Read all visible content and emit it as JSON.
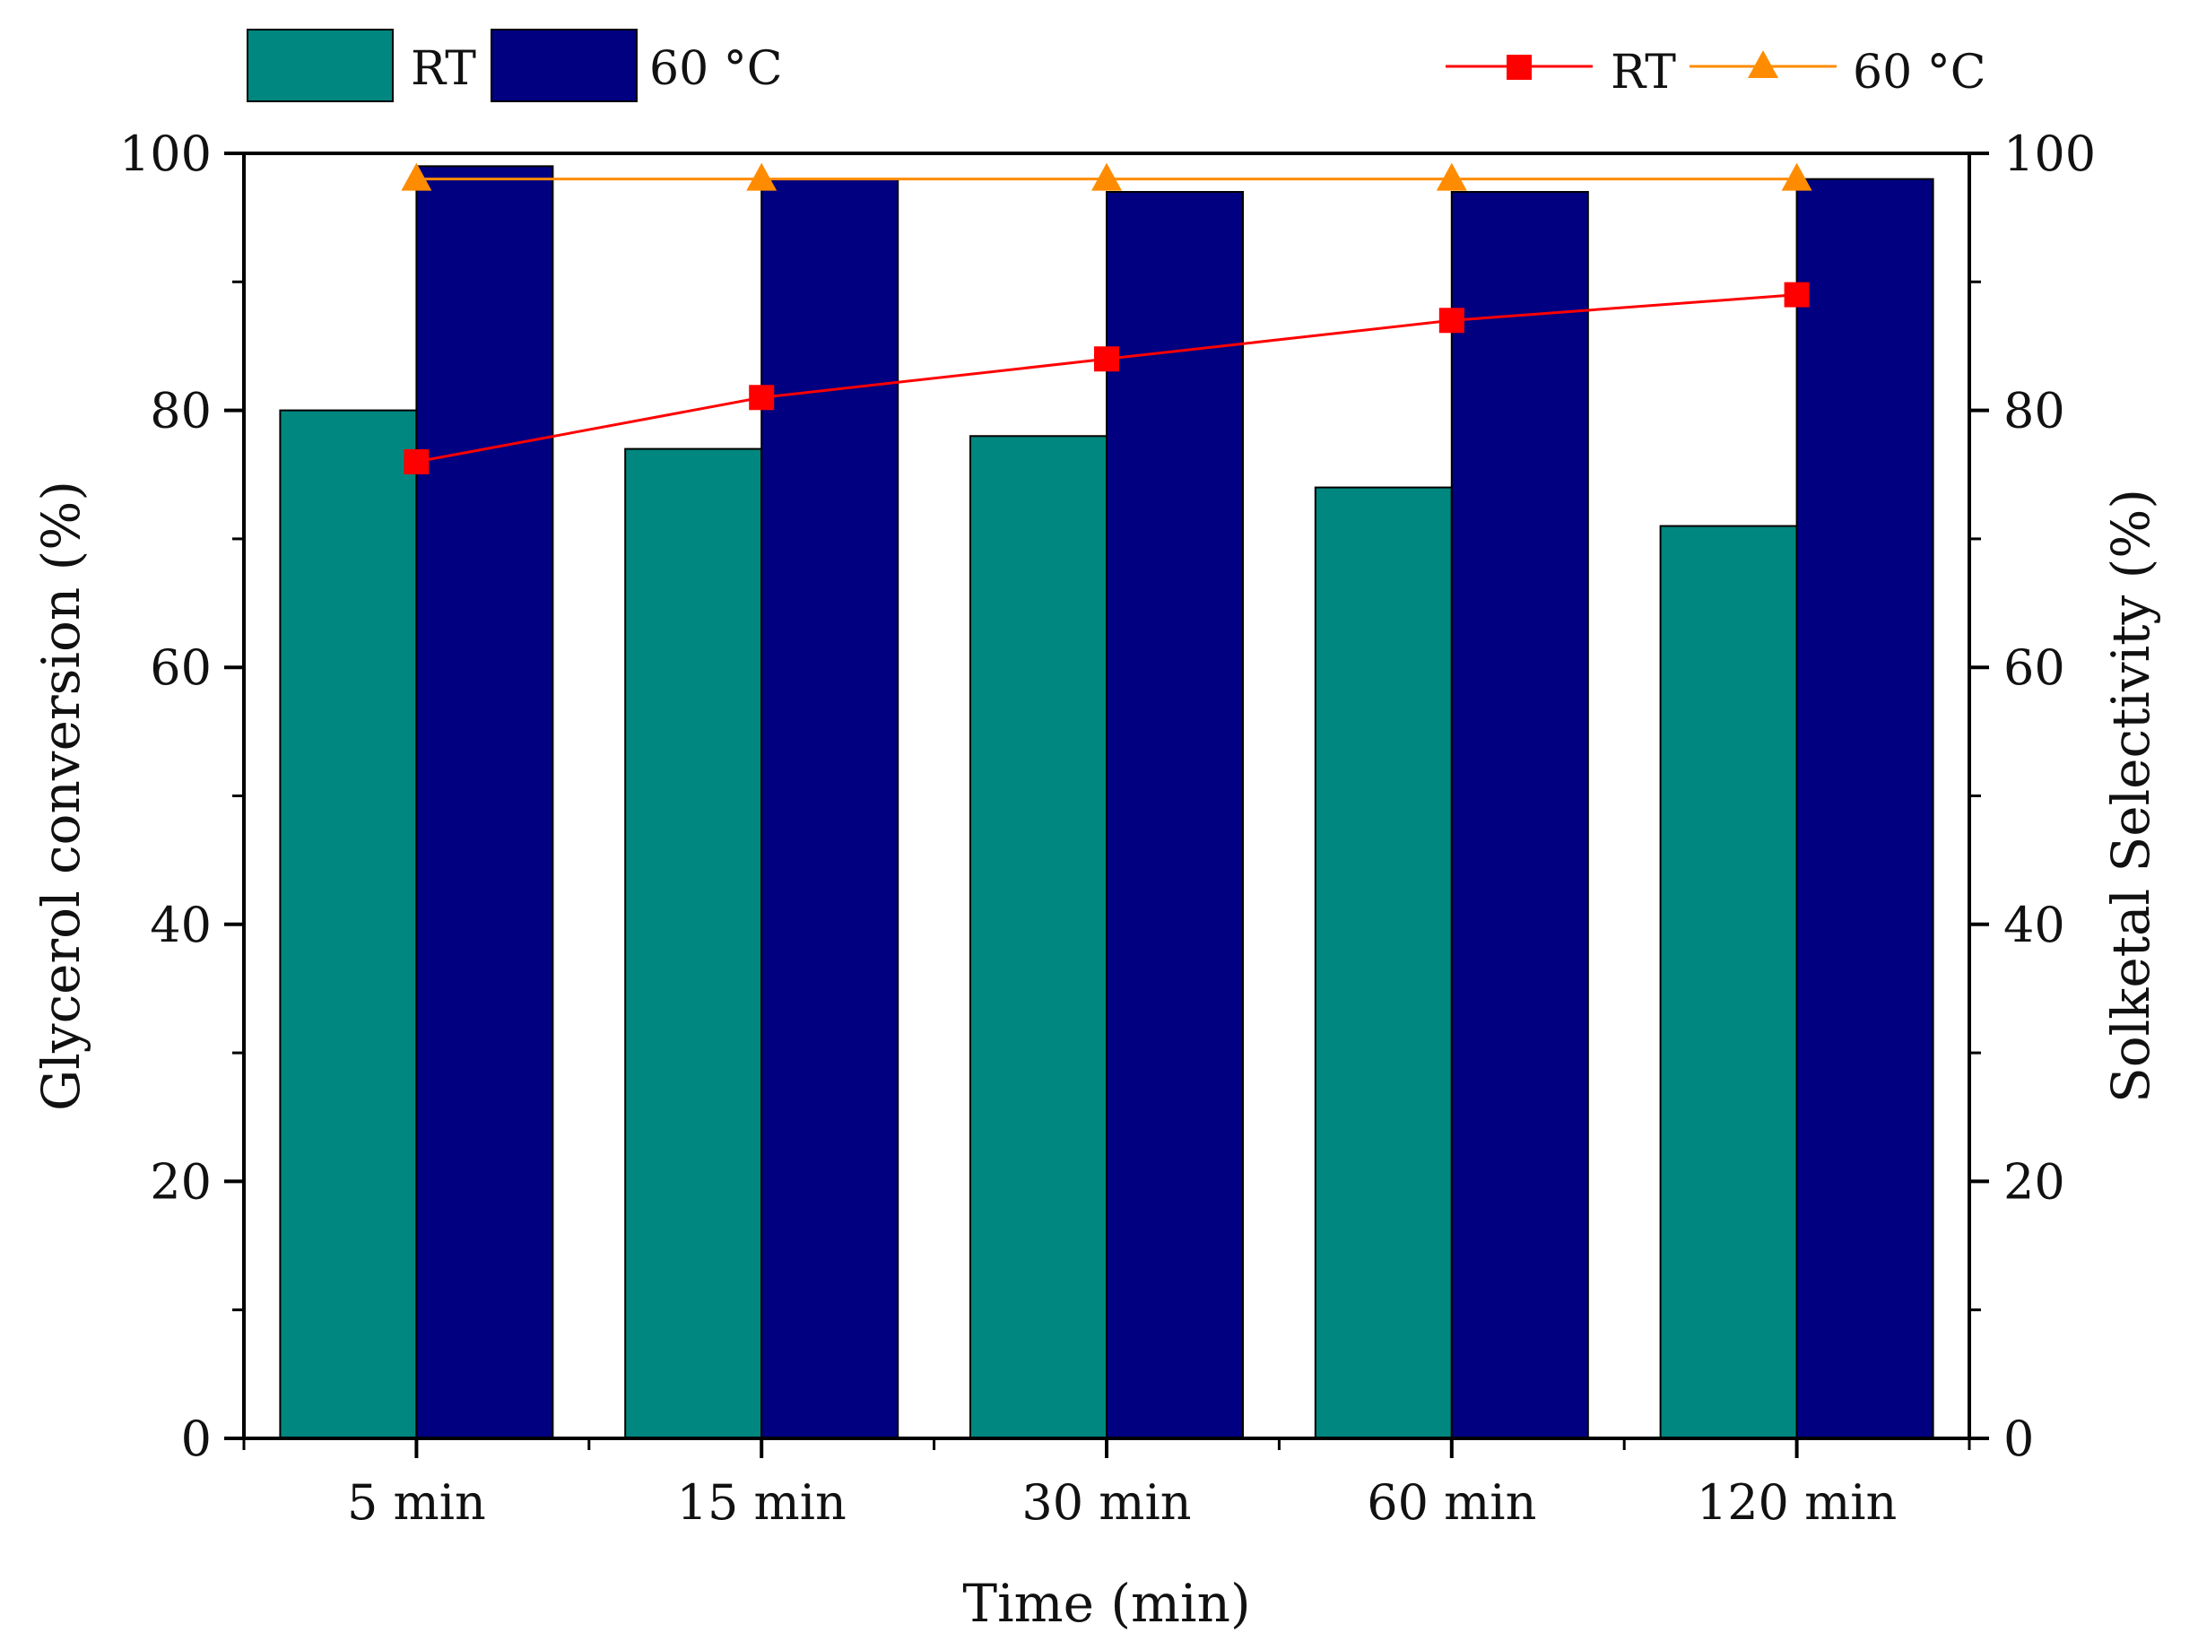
{
  "chart_data": {
    "type": "bar",
    "title": "",
    "categories": [
      "5 min",
      "15 min",
      "30 min",
      "60 min",
      "120 min"
    ],
    "xlabel": "Time (min)",
    "ylabel": "Glycerol conversion (%)",
    "y2label": "Solketal Selectivity (%)",
    "ylim": [
      0,
      100
    ],
    "y2lim": [
      0,
      100
    ],
    "yticks": [
      0,
      20,
      40,
      60,
      80,
      100
    ],
    "y2ticks": [
      0,
      20,
      40,
      60,
      80,
      100
    ],
    "grid": false,
    "bar_series": [
      {
        "name": "RT",
        "color": "#00877f",
        "values": [
          80,
          77,
          78,
          74,
          71
        ]
      },
      {
        "name": "60 °C",
        "color": "#000080",
        "values": [
          99,
          98,
          97,
          97,
          98
        ]
      }
    ],
    "line_series": [
      {
        "name": "RT",
        "color": "#ff0000",
        "marker": "square",
        "axis": "right",
        "values": [
          76,
          81,
          84,
          87,
          89
        ]
      },
      {
        "name": "60 °C",
        "color": "#ff8c00",
        "marker": "triangle",
        "axis": "right",
        "values": [
          98,
          98,
          98,
          98,
          98
        ]
      }
    ],
    "bar_legend_position": "top-left",
    "line_legend_position": "top-right"
  }
}
